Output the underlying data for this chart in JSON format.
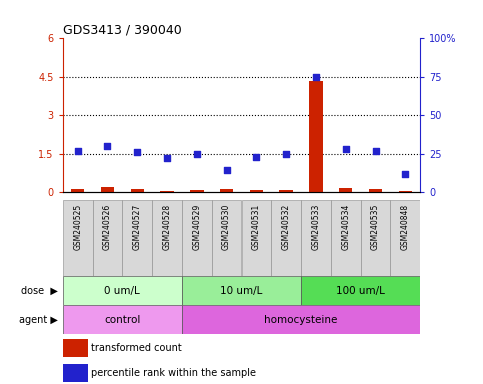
{
  "title": "GDS3413 / 390040",
  "samples": [
    "GSM240525",
    "GSM240526",
    "GSM240527",
    "GSM240528",
    "GSM240529",
    "GSM240530",
    "GSM240531",
    "GSM240532",
    "GSM240533",
    "GSM240534",
    "GSM240535",
    "GSM240848"
  ],
  "transformed_count": [
    0.12,
    0.18,
    0.1,
    0.05,
    0.07,
    0.12,
    0.06,
    0.07,
    4.35,
    0.15,
    0.12,
    0.04
  ],
  "percentile_rank": [
    27,
    30,
    26,
    22,
    25,
    14,
    23,
    25,
    75,
    28,
    27,
    12
  ],
  "ylim_left": [
    0,
    6
  ],
  "ylim_right": [
    0,
    100
  ],
  "yticks_left": [
    0,
    1.5,
    3.0,
    4.5,
    6.0
  ],
  "yticks_right": [
    0,
    25,
    50,
    75,
    100
  ],
  "ytick_labels_left": [
    "0",
    "1.5",
    "3",
    "4.5",
    "6"
  ],
  "ytick_labels_right": [
    "0",
    "25",
    "50",
    "75",
    "100%"
  ],
  "hlines": [
    1.5,
    3.0,
    4.5
  ],
  "dose_groups": [
    {
      "label": "0 um/L",
      "start": 0,
      "end": 3,
      "color": "#ccffcc"
    },
    {
      "label": "10 um/L",
      "start": 4,
      "end": 7,
      "color": "#99ee99"
    },
    {
      "label": "100 um/L",
      "start": 8,
      "end": 11,
      "color": "#55dd55"
    }
  ],
  "agent_groups": [
    {
      "label": "control",
      "start": 0,
      "end": 3,
      "color": "#ee99ee"
    },
    {
      "label": "homocysteine",
      "start": 4,
      "end": 11,
      "color": "#dd66dd"
    }
  ],
  "bar_color": "#cc2200",
  "dot_color": "#2222cc",
  "sample_box_color": "#d8d8d8",
  "plot_bg": "#ffffff",
  "left_axis_color": "#cc2200",
  "right_axis_color": "#2222cc",
  "legend_items": [
    {
      "color": "#cc2200",
      "label": "transformed count"
    },
    {
      "color": "#2222cc",
      "label": "percentile rank within the sample"
    }
  ]
}
